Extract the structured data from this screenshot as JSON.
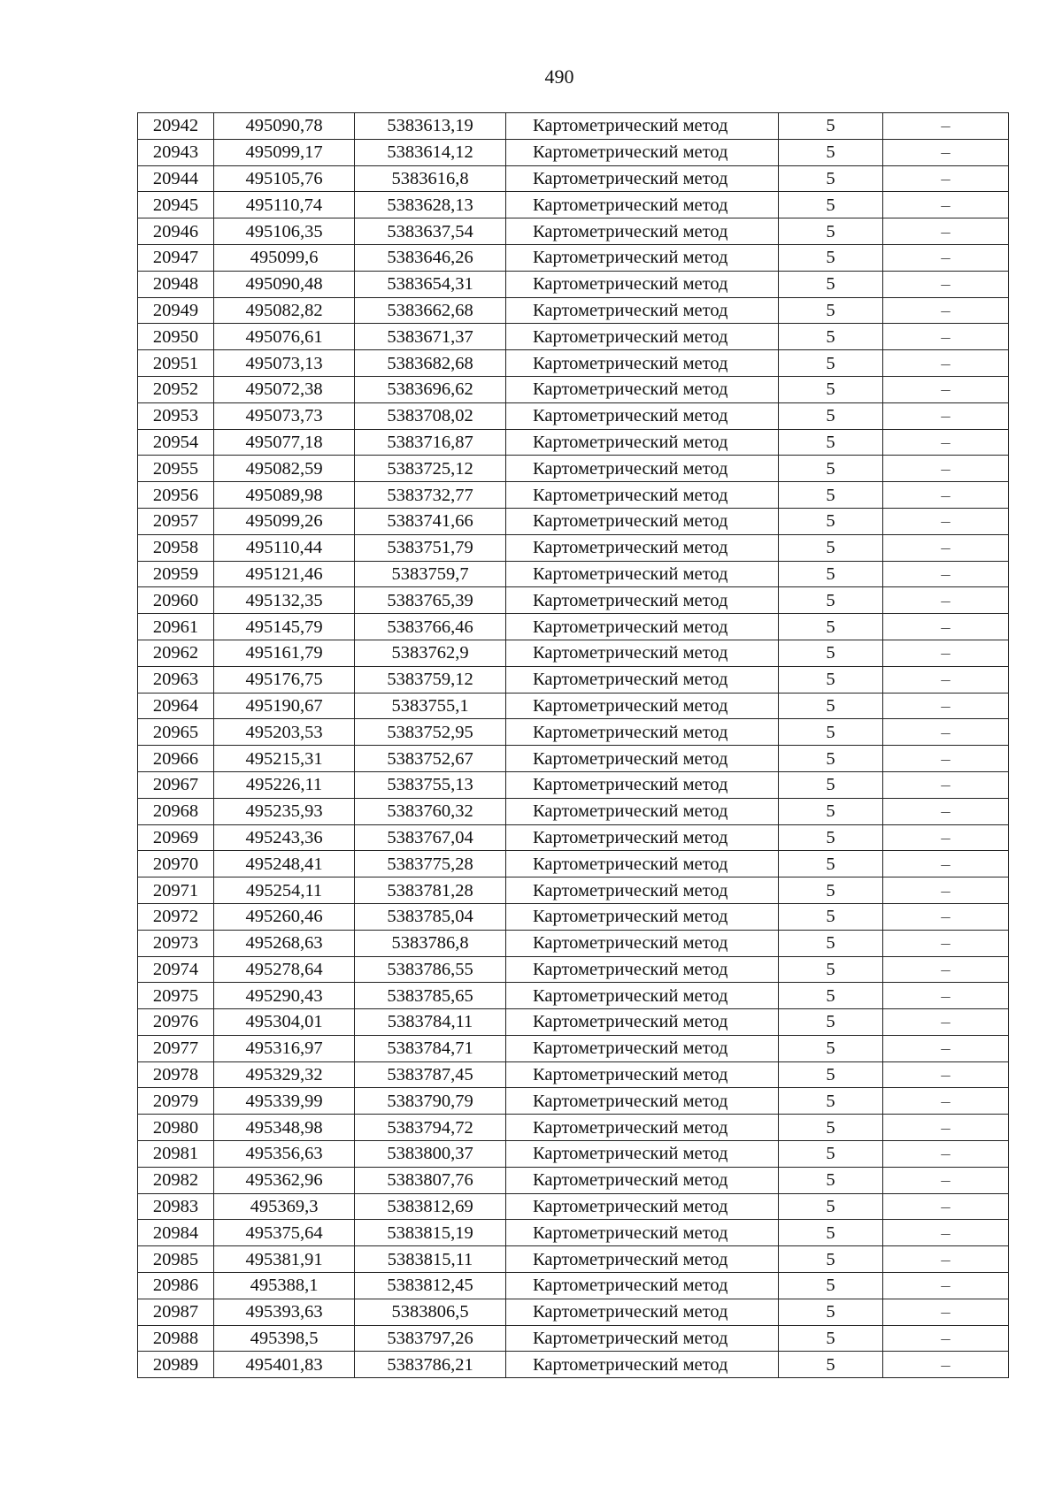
{
  "page_number": "490",
  "table": {
    "rows": [
      [
        "20942",
        "495090,78",
        "5383613,19",
        "Картометрический метод",
        "5",
        "–"
      ],
      [
        "20943",
        "495099,17",
        "5383614,12",
        "Картометрический метод",
        "5",
        "–"
      ],
      [
        "20944",
        "495105,76",
        "5383616,8",
        "Картометрический метод",
        "5",
        "–"
      ],
      [
        "20945",
        "495110,74",
        "5383628,13",
        "Картометрический метод",
        "5",
        "–"
      ],
      [
        "20946",
        "495106,35",
        "5383637,54",
        "Картометрический метод",
        "5",
        "–"
      ],
      [
        "20947",
        "495099,6",
        "5383646,26",
        "Картометрический метод",
        "5",
        "–"
      ],
      [
        "20948",
        "495090,48",
        "5383654,31",
        "Картометрический метод",
        "5",
        "–"
      ],
      [
        "20949",
        "495082,82",
        "5383662,68",
        "Картометрический метод",
        "5",
        "–"
      ],
      [
        "20950",
        "495076,61",
        "5383671,37",
        "Картометрический метод",
        "5",
        "–"
      ],
      [
        "20951",
        "495073,13",
        "5383682,68",
        "Картометрический метод",
        "5",
        "–"
      ],
      [
        "20952",
        "495072,38",
        "5383696,62",
        "Картометрический метод",
        "5",
        "–"
      ],
      [
        "20953",
        "495073,73",
        "5383708,02",
        "Картометрический метод",
        "5",
        "–"
      ],
      [
        "20954",
        "495077,18",
        "5383716,87",
        "Картометрический метод",
        "5",
        "–"
      ],
      [
        "20955",
        "495082,59",
        "5383725,12",
        "Картометрический метод",
        "5",
        "–"
      ],
      [
        "20956",
        "495089,98",
        "5383732,77",
        "Картометрический метод",
        "5",
        "–"
      ],
      [
        "20957",
        "495099,26",
        "5383741,66",
        "Картометрический метод",
        "5",
        "–"
      ],
      [
        "20958",
        "495110,44",
        "5383751,79",
        "Картометрический метод",
        "5",
        "–"
      ],
      [
        "20959",
        "495121,46",
        "5383759,7",
        "Картометрический метод",
        "5",
        "–"
      ],
      [
        "20960",
        "495132,35",
        "5383765,39",
        "Картометрический метод",
        "5",
        "–"
      ],
      [
        "20961",
        "495145,79",
        "5383766,46",
        "Картометрический метод",
        "5",
        "–"
      ],
      [
        "20962",
        "495161,79",
        "5383762,9",
        "Картометрический метод",
        "5",
        "–"
      ],
      [
        "20963",
        "495176,75",
        "5383759,12",
        "Картометрический метод",
        "5",
        "–"
      ],
      [
        "20964",
        "495190,67",
        "5383755,1",
        "Картометрический метод",
        "5",
        "–"
      ],
      [
        "20965",
        "495203,53",
        "5383752,95",
        "Картометрический метод",
        "5",
        "–"
      ],
      [
        "20966",
        "495215,31",
        "5383752,67",
        "Картометрический метод",
        "5",
        "–"
      ],
      [
        "20967",
        "495226,11",
        "5383755,13",
        "Картометрический метод",
        "5",
        "–"
      ],
      [
        "20968",
        "495235,93",
        "5383760,32",
        "Картометрический метод",
        "5",
        "–"
      ],
      [
        "20969",
        "495243,36",
        "5383767,04",
        "Картометрический метод",
        "5",
        "–"
      ],
      [
        "20970",
        "495248,41",
        "5383775,28",
        "Картометрический метод",
        "5",
        "–"
      ],
      [
        "20971",
        "495254,11",
        "5383781,28",
        "Картометрический метод",
        "5",
        "–"
      ],
      [
        "20972",
        "495260,46",
        "5383785,04",
        "Картометрический метод",
        "5",
        "–"
      ],
      [
        "20973",
        "495268,63",
        "5383786,8",
        "Картометрический метод",
        "5",
        "–"
      ],
      [
        "20974",
        "495278,64",
        "5383786,55",
        "Картометрический метод",
        "5",
        "–"
      ],
      [
        "20975",
        "495290,43",
        "5383785,65",
        "Картометрический метод",
        "5",
        "–"
      ],
      [
        "20976",
        "495304,01",
        "5383784,11",
        "Картометрический метод",
        "5",
        "–"
      ],
      [
        "20977",
        "495316,97",
        "5383784,71",
        "Картометрический метод",
        "5",
        "–"
      ],
      [
        "20978",
        "495329,32",
        "5383787,45",
        "Картометрический метод",
        "5",
        "–"
      ],
      [
        "20979",
        "495339,99",
        "5383790,79",
        "Картометрический метод",
        "5",
        "–"
      ],
      [
        "20980",
        "495348,98",
        "5383794,72",
        "Картометрический метод",
        "5",
        "–"
      ],
      [
        "20981",
        "495356,63",
        "5383800,37",
        "Картометрический метод",
        "5",
        "–"
      ],
      [
        "20982",
        "495362,96",
        "5383807,76",
        "Картометрический метод",
        "5",
        "–"
      ],
      [
        "20983",
        "495369,3",
        "5383812,69",
        "Картометрический метод",
        "5",
        "–"
      ],
      [
        "20984",
        "495375,64",
        "5383815,19",
        "Картометрический метод",
        "5",
        "–"
      ],
      [
        "20985",
        "495381,91",
        "5383815,11",
        "Картометрический метод",
        "5",
        "–"
      ],
      [
        "20986",
        "495388,1",
        "5383812,45",
        "Картометрический метод",
        "5",
        "–"
      ],
      [
        "20987",
        "495393,63",
        "5383806,5",
        "Картометрический метод",
        "5",
        "–"
      ],
      [
        "20988",
        "495398,5",
        "5383797,26",
        "Картометрический метод",
        "5",
        "–"
      ],
      [
        "20989",
        "495401,83",
        "5383786,21",
        "Картометрический метод",
        "5",
        "–"
      ]
    ]
  }
}
